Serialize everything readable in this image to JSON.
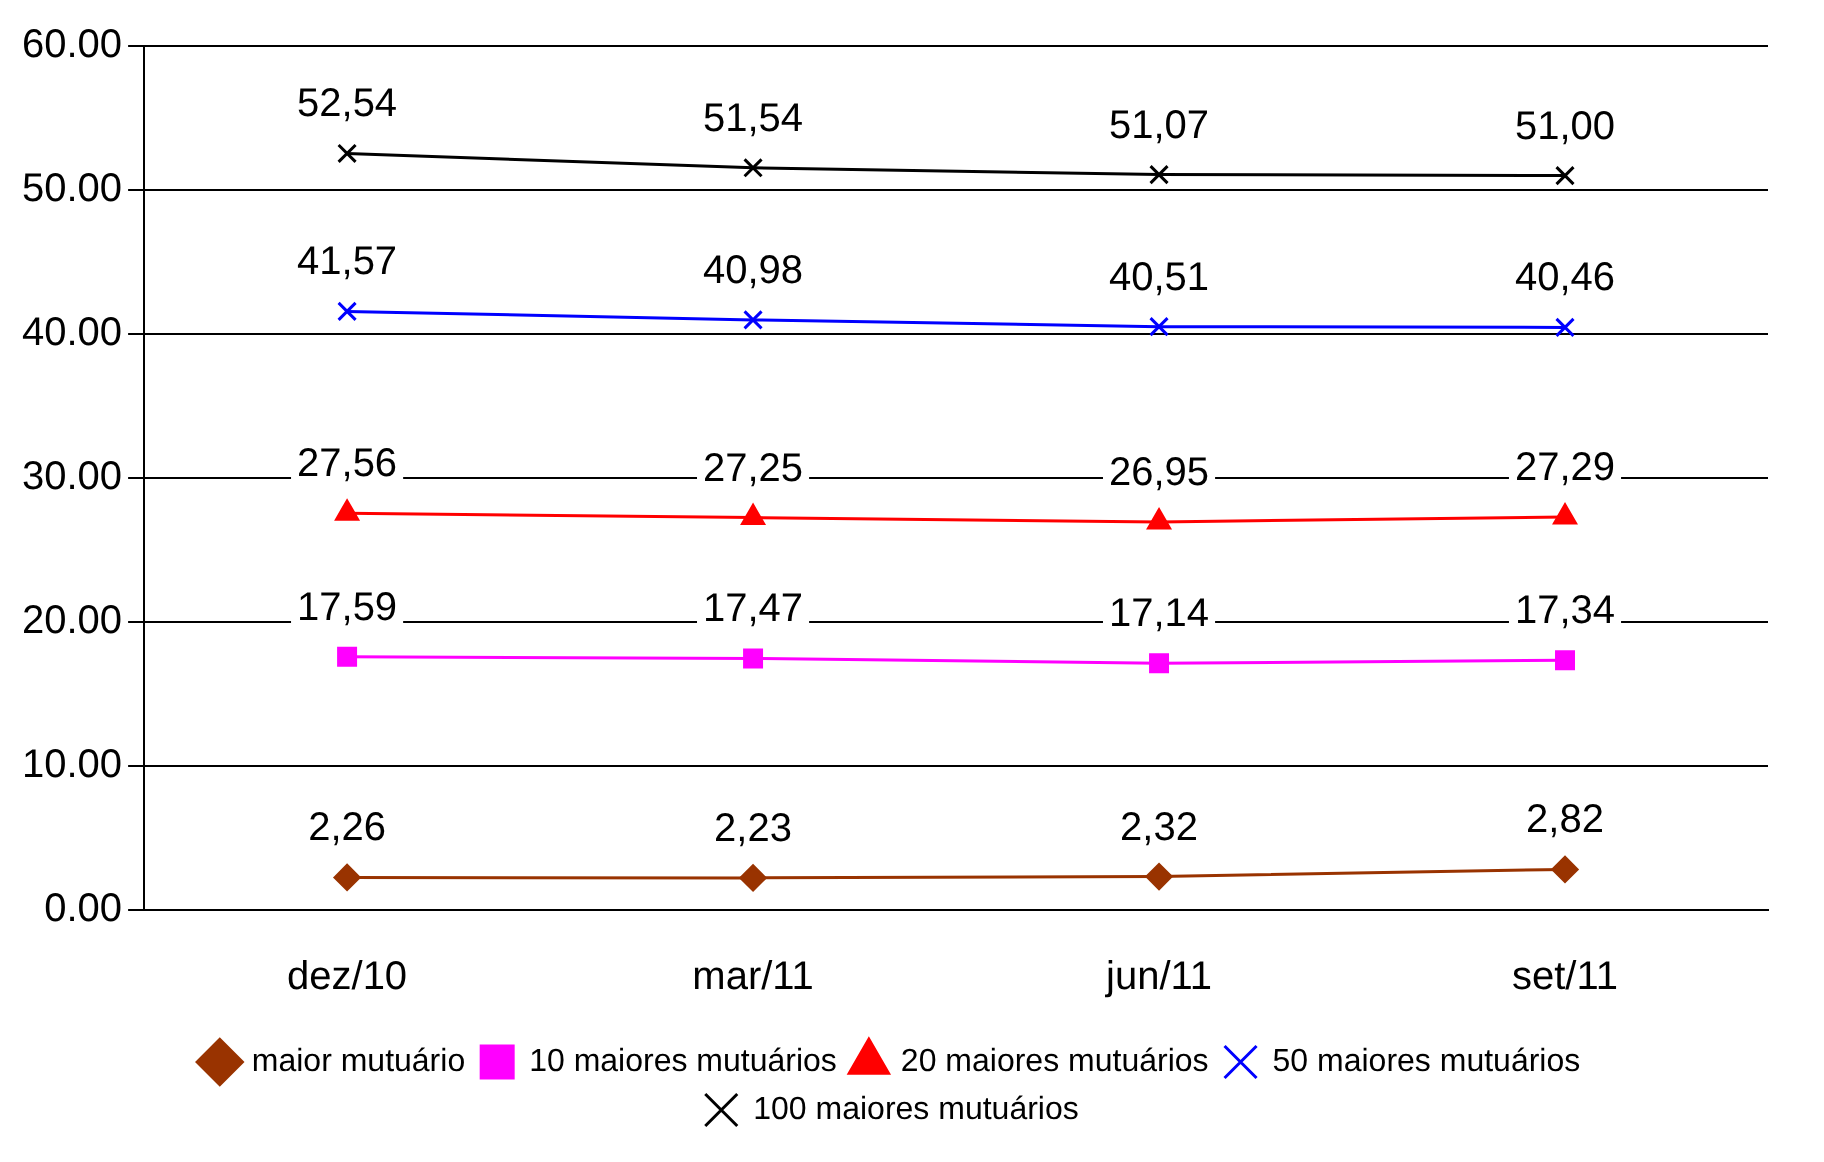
{
  "chart_data": {
    "type": "line",
    "categories": [
      "dez/10",
      "mar/11",
      "jun/11",
      "set/11"
    ],
    "series": [
      {
        "name": "maior mutuário",
        "color": "#993300",
        "marker": "diamond",
        "values": [
          2.26,
          2.23,
          2.32,
          2.82
        ],
        "value_labels": [
          "2,26",
          "2,23",
          "2,32",
          "2,82"
        ]
      },
      {
        "name": "10 maiores mutuários",
        "color": "#ff00ff",
        "marker": "square",
        "values": [
          17.59,
          17.47,
          17.14,
          17.34
        ],
        "value_labels": [
          "17,59",
          "17,47",
          "17,14",
          "17,34"
        ]
      },
      {
        "name": "20 maiores mutuários",
        "color": "#ff0000",
        "marker": "triangle",
        "values": [
          27.56,
          27.25,
          26.95,
          27.29
        ],
        "value_labels": [
          "27,56",
          "27,25",
          "26,95",
          "27,29"
        ]
      },
      {
        "name": "50 maiores mutuários",
        "color": "#0000ff",
        "marker": "cross",
        "values": [
          41.57,
          40.98,
          40.51,
          40.46
        ],
        "value_labels": [
          "41,57",
          "40,98",
          "40,51",
          "40,46"
        ]
      },
      {
        "name": "100 maiores mutuários",
        "color": "#000000",
        "marker": "cross",
        "values": [
          52.54,
          51.54,
          51.07,
          51.0
        ],
        "value_labels": [
          "52,54",
          "51,54",
          "51,07",
          "51,00"
        ]
      }
    ],
    "ylim": [
      0,
      60
    ],
    "yticks": [
      {
        "value": 0,
        "label": "0.00"
      },
      {
        "value": 10,
        "label": "10.00"
      },
      {
        "value": 20,
        "label": "20.00"
      },
      {
        "value": 30,
        "label": "30.00"
      },
      {
        "value": 40,
        "label": "40.00"
      },
      {
        "value": 50,
        "label": "50.00"
      },
      {
        "value": 60,
        "label": "60.00"
      }
    ],
    "grid": "y",
    "legend": "bottom",
    "line_style": "solid"
  }
}
